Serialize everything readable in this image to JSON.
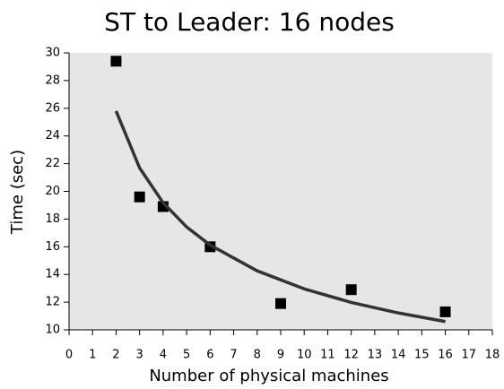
{
  "chart_data": {
    "type": "scatter",
    "title": "ST to Leader: 16 nodes",
    "xlabel": "Number of physical machines",
    "ylabel": "Time (sec)",
    "xlim": [
      0,
      18
    ],
    "xticks": [
      0,
      1,
      2,
      3,
      4,
      5,
      6,
      7,
      8,
      9,
      10,
      11,
      12,
      13,
      14,
      15,
      16,
      17,
      18
    ],
    "ylim": [
      10,
      30
    ],
    "yticks": [
      10,
      12,
      14,
      16,
      18,
      20,
      22,
      24,
      26,
      28,
      30
    ],
    "background": "#e6e6e6",
    "series": [
      {
        "type": "scatter",
        "color": "#000000",
        "x": [
          2,
          3,
          4,
          6,
          9,
          12,
          16
        ],
        "values": [
          29.4,
          19.6,
          18.9,
          16.0,
          11.9,
          12.9,
          11.3
        ]
      },
      {
        "type": "line",
        "color": "#333333",
        "x": [
          2,
          3,
          4,
          5,
          6,
          8,
          10,
          12,
          14,
          16
        ],
        "values": [
          25.8,
          21.69,
          19.18,
          17.43,
          16.12,
          14.26,
          12.96,
          11.98,
          11.22,
          10.6
        ]
      }
    ]
  }
}
